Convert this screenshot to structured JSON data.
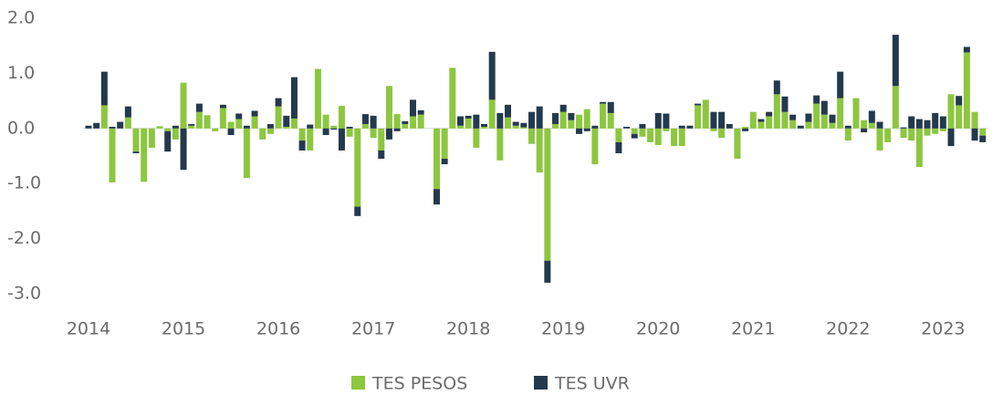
{
  "chart_data": {
    "type": "stacked_bar",
    "categories": [
      "2014",
      null,
      null,
      null,
      null,
      null,
      null,
      null,
      null,
      null,
      null,
      null,
      "2015",
      null,
      null,
      null,
      null,
      null,
      null,
      null,
      null,
      null,
      null,
      null,
      "2016",
      null,
      null,
      null,
      null,
      null,
      null,
      null,
      null,
      null,
      null,
      null,
      "2017",
      null,
      null,
      null,
      null,
      null,
      null,
      null,
      null,
      null,
      null,
      null,
      "2018",
      null,
      null,
      null,
      null,
      null,
      null,
      null,
      null,
      null,
      null,
      null,
      "2019",
      null,
      null,
      null,
      null,
      null,
      null,
      null,
      null,
      null,
      null,
      null,
      "2020",
      null,
      null,
      null,
      null,
      null,
      null,
      null,
      null,
      null,
      null,
      null,
      "2021",
      null,
      null,
      null,
      null,
      null,
      null,
      null,
      null,
      null,
      null,
      null,
      "2022",
      null,
      null,
      null,
      null,
      null,
      null,
      null,
      null,
      null,
      null,
      null,
      "2023",
      null,
      null,
      null,
      null,
      null
    ],
    "series": [
      {
        "name": "TES PESOS",
        "color": "#8dc63f",
        "values": [
          0,
          0,
          0.42,
          -0.98,
          0,
          0.2,
          -0.42,
          -0.97,
          -0.35,
          0.04,
          -0.05,
          -0.2,
          0.83,
          0.05,
          0.3,
          0.24,
          -0.05,
          0.37,
          0.12,
          0.17,
          -0.9,
          0.22,
          -0.2,
          -0.1,
          0.4,
          0.03,
          0.18,
          -0.22,
          -0.4,
          1.08,
          0.25,
          0.05,
          0.41,
          -0.15,
          -1.42,
          0.08,
          -0.17,
          -0.4,
          0.77,
          0.26,
          0.08,
          0.22,
          0.25,
          0,
          -1.1,
          -0.55,
          1.1,
          0.05,
          0.18,
          -0.35,
          0.03,
          0.52,
          -0.58,
          0.2,
          0.05,
          0.02,
          -0.28,
          -0.8,
          -2.4,
          0.08,
          0.3,
          0.15,
          0.25,
          0.35,
          -0.65,
          0.45,
          0.28,
          -0.25,
          0,
          -0.1,
          -0.15,
          -0.25,
          -0.3,
          -0.05,
          -0.32,
          -0.32,
          0,
          0.42,
          0.52,
          -0.05,
          -0.17,
          0,
          -0.55,
          0.03,
          0.3,
          0.12,
          0.22,
          0.62,
          0.3,
          0.15,
          0,
          0.12,
          0.45,
          0.25,
          0.1,
          0.55,
          -0.22,
          0.55,
          0.15,
          0.1,
          -0.4,
          -0.25,
          0.77,
          -0.17,
          -0.22,
          -0.7,
          -0.13,
          -0.1,
          -0.05,
          0.62,
          0.42,
          1.38,
          0.3,
          -0.13
        ]
      },
      {
        "name": "TES UVR",
        "color": "#24394d",
        "values": [
          0.05,
          0.1,
          0.61,
          0.03,
          0.12,
          0.2,
          -0.03,
          0,
          0,
          0,
          -0.37,
          0.05,
          -0.75,
          0.03,
          0.15,
          0,
          0,
          0.06,
          -0.12,
          0.1,
          0.05,
          0.1,
          0,
          0.08,
          0.15,
          0.2,
          0.75,
          -0.18,
          0.07,
          0,
          -0.12,
          -0.02,
          -0.4,
          0.03,
          -0.17,
          0.18,
          0.23,
          -0.15,
          -0.2,
          -0.05,
          0.05,
          0.3,
          0.08,
          0,
          -0.28,
          -0.1,
          0,
          0.17,
          0.05,
          0.25,
          0.05,
          0.87,
          0.28,
          0.23,
          0.07,
          0.08,
          0.3,
          0.4,
          -0.4,
          0.2,
          0.13,
          0.13,
          -0.1,
          -0.05,
          0.05,
          0.03,
          0.2,
          -0.2,
          0.03,
          -0.08,
          0.08,
          0,
          0.28,
          0.27,
          0,
          0.05,
          0.05,
          0.03,
          0,
          0.3,
          0.3,
          0.08,
          0,
          -0.05,
          0,
          0.05,
          0.08,
          0.25,
          0.28,
          0.1,
          0.05,
          0.15,
          0.15,
          0.25,
          0.15,
          0.48,
          0.05,
          0,
          -0.07,
          0.22,
          0.12,
          0,
          0.93,
          0.02,
          0.22,
          0.17,
          0.15,
          0.28,
          0.22,
          -0.32,
          0.17,
          0.1,
          -0.22,
          -0.12
        ]
      }
    ],
    "ylim": [
      -3,
      2
    ],
    "yticks": [
      {
        "value": 2,
        "label": "2.0"
      },
      {
        "value": 1,
        "label": "1.0"
      },
      {
        "value": 0,
        "label": "0.0"
      },
      {
        "value": -1,
        "label": "-1.0"
      },
      {
        "value": -2,
        "label": "-2.0"
      },
      {
        "value": -3,
        "label": "-3.0"
      }
    ],
    "legend": "bottom"
  }
}
